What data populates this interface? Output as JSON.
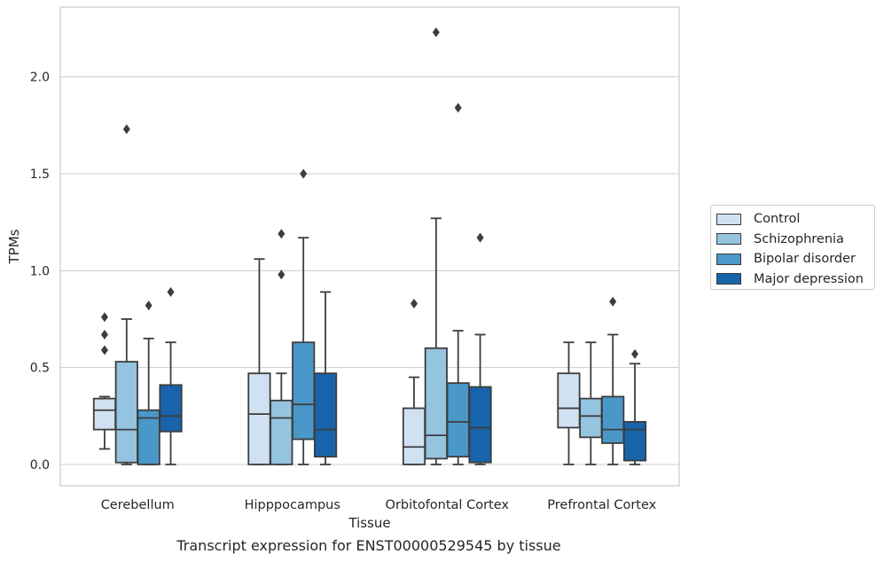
{
  "caption": "Transcript expression for ENST00000529545 by tissue",
  "chart_data": {
    "type": "box",
    "xlabel": "Tissue",
    "ylabel": "TPMs",
    "ylim": [
      -0.11,
      2.36
    ],
    "yticks": [
      0.0,
      0.5,
      1.0,
      1.5,
      2.0
    ],
    "ytick_labels": [
      "0.0",
      "0.5",
      "1.0",
      "1.5",
      "2.0"
    ],
    "grid": "horizontal",
    "legend_position": "right",
    "categories": [
      "Cerebellum",
      "Hipppocampus",
      "Orbitofontal Cortex",
      "Prefrontal Cortex"
    ],
    "series": [
      {
        "name": "Control",
        "color": "#d0e1f2",
        "boxes": [
          {
            "whislo": 0.08,
            "q1": 0.18,
            "med": 0.28,
            "q3": 0.34,
            "whishi": 0.35,
            "fliers": [
              0.59,
              0.67,
              0.76
            ]
          },
          {
            "whislo": 0.0,
            "q1": 0.0,
            "med": 0.26,
            "q3": 0.47,
            "whishi": 1.06,
            "fliers": []
          },
          {
            "whislo": 0.0,
            "q1": 0.0,
            "med": 0.09,
            "q3": 0.29,
            "whishi": 0.45,
            "fliers": [
              0.83
            ]
          },
          {
            "whislo": 0.0,
            "q1": 0.19,
            "med": 0.29,
            "q3": 0.47,
            "whishi": 0.63,
            "fliers": []
          }
        ]
      },
      {
        "name": "Schizophrenia",
        "color": "#94c4df",
        "boxes": [
          {
            "whislo": 0.0,
            "q1": 0.01,
            "med": 0.18,
            "q3": 0.53,
            "whishi": 0.75,
            "fliers": [
              1.73
            ]
          },
          {
            "whislo": 0.0,
            "q1": 0.0,
            "med": 0.24,
            "q3": 0.33,
            "whishi": 0.47,
            "fliers": [
              0.98,
              1.19
            ]
          },
          {
            "whislo": 0.0,
            "q1": 0.03,
            "med": 0.15,
            "q3": 0.6,
            "whishi": 1.27,
            "fliers": [
              2.23
            ]
          },
          {
            "whislo": 0.0,
            "q1": 0.14,
            "med": 0.25,
            "q3": 0.34,
            "whishi": 0.63,
            "fliers": []
          }
        ]
      },
      {
        "name": "Bipolar disorder",
        "color": "#4a98c9",
        "boxes": [
          {
            "whislo": 0.0,
            "q1": 0.0,
            "med": 0.24,
            "q3": 0.28,
            "whishi": 0.65,
            "fliers": [
              0.82
            ]
          },
          {
            "whislo": 0.0,
            "q1": 0.13,
            "med": 0.31,
            "q3": 0.63,
            "whishi": 1.17,
            "fliers": [
              1.5
            ]
          },
          {
            "whislo": 0.0,
            "q1": 0.04,
            "med": 0.22,
            "q3": 0.42,
            "whishi": 0.69,
            "fliers": [
              1.84
            ]
          },
          {
            "whislo": 0.0,
            "q1": 0.11,
            "med": 0.18,
            "q3": 0.35,
            "whishi": 0.67,
            "fliers": [
              0.84
            ]
          }
        ]
      },
      {
        "name": "Major depression",
        "color": "#1764ab",
        "boxes": [
          {
            "whislo": 0.0,
            "q1": 0.17,
            "med": 0.25,
            "q3": 0.41,
            "whishi": 0.63,
            "fliers": [
              0.89
            ]
          },
          {
            "whislo": 0.0,
            "q1": 0.04,
            "med": 0.18,
            "q3": 0.47,
            "whishi": 0.89,
            "fliers": []
          },
          {
            "whislo": 0.0,
            "q1": 0.01,
            "med": 0.19,
            "q3": 0.4,
            "whishi": 0.67,
            "fliers": [
              1.17
            ]
          },
          {
            "whislo": 0.0,
            "q1": 0.02,
            "med": 0.18,
            "q3": 0.22,
            "whishi": 0.52,
            "fliers": [
              0.57
            ]
          }
        ]
      }
    ]
  }
}
